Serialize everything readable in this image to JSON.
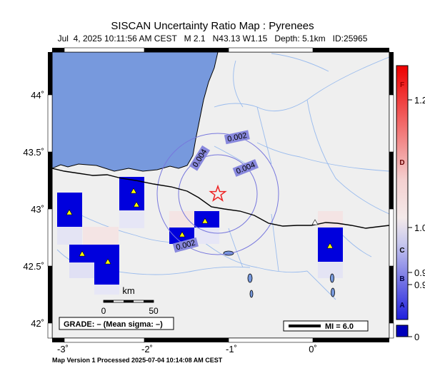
{
  "header": {
    "title": "SISCAN Uncertainty Ratio Map : Pyrenees",
    "subtitle": "Jul  4, 2025 10:11:56 AM CEST   M 2.1   N43.13 W1.15   Depth: 5.1km   ID:25965"
  },
  "axes": {
    "x_ticks": [
      "-3˚",
      "-2˚",
      "-1˚",
      "0˚"
    ],
    "y_ticks": [
      "44˚",
      "43.5˚",
      "43˚",
      "42.5˚",
      "42˚"
    ]
  },
  "contours": [
    "0.002",
    "0.004",
    "0.004",
    "0.002"
  ],
  "scale_bar": {
    "unit": "km",
    "left": "0",
    "right": "50"
  },
  "grade_box": "GRADE: – (Mean sigma: –)",
  "mi_box": "MI = 6.0",
  "colorbar": {
    "letters": [
      "F",
      "D",
      "C",
      "B",
      "A"
    ],
    "values": [
      "1.2",
      "1.0",
      "0.9",
      "0.9",
      "0"
    ],
    "colors": {
      "high": "#ee0000",
      "mid": "#f4eaea",
      "low": "#2020dd",
      "nodata": "#0000bb"
    }
  },
  "footer": "Map Version 1 Processed 2025-07-04 10:14:08 AM CEST",
  "epicenter": {
    "lat": 43.13,
    "lon": -1.15,
    "icon": "star-icon",
    "color": "#ee2222"
  },
  "stations": {
    "icon": "triangle-icon",
    "color": "#ffff00"
  },
  "colors": {
    "sea": "#7799dd",
    "land": "#efefef",
    "river": "#99bbee",
    "border": "#000000",
    "contour": "#7777dd"
  }
}
